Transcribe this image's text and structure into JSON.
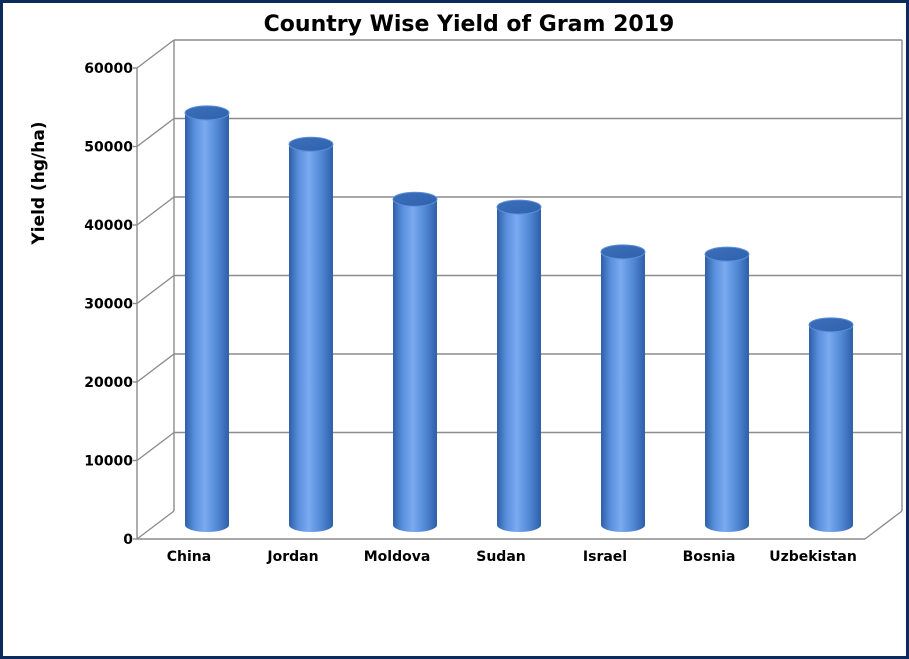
{
  "chart_data": {
    "type": "bar",
    "style": "3d-cylinder",
    "title": "Country Wise Yield of Gram 2019",
    "xlabel": "",
    "ylabel": "Yield (hg/ha)",
    "categories": [
      "China",
      "Jordan",
      "Moldova",
      "Sudan",
      "Israel",
      "Bosnia",
      "Uzbekistan"
    ],
    "values": [
      52500,
      48500,
      41500,
      40500,
      34800,
      34500,
      25500
    ],
    "ylim": [
      0,
      60000
    ],
    "yticks": [
      "0",
      "10000",
      "20000",
      "30000",
      "40000",
      "50000",
      "60000"
    ],
    "grid": true,
    "legend": "none",
    "colors": {
      "bar": "#4f86d3",
      "bar_light": "#7aaaf0",
      "bar_dark": "#2e5fa8",
      "border": "#0d2a5c"
    }
  }
}
